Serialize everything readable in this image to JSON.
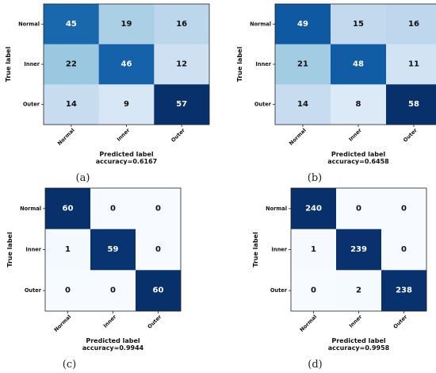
{
  "chart_data": [
    {
      "type": "heatmap",
      "panel": "(a)",
      "xlabel": "Predicted label",
      "ylabel": "True label",
      "accuracy_text": "accuracy=0.6167",
      "row_labels": [
        "Normal",
        "Inner",
        "Outer"
      ],
      "col_labels": [
        "Normal",
        "Inner",
        "Outer"
      ],
      "values": [
        [
          45,
          19,
          16
        ],
        [
          22,
          46,
          12
        ],
        [
          14,
          9,
          57
        ]
      ],
      "colormap": "Blues"
    },
    {
      "type": "heatmap",
      "panel": "(b)",
      "xlabel": "Predicted label",
      "ylabel": "True label",
      "accuracy_text": "accuracy=0.6458",
      "row_labels": [
        "Normal",
        "Inner",
        "Outer"
      ],
      "col_labels": [
        "Normal",
        "Inner",
        "Outer"
      ],
      "values": [
        [
          49,
          15,
          16
        ],
        [
          21,
          48,
          11
        ],
        [
          14,
          8,
          58
        ]
      ],
      "colormap": "Blues"
    },
    {
      "type": "heatmap",
      "panel": "(c)",
      "xlabel": "Predicted label",
      "ylabel": "True label",
      "accuracy_text": "accuracy=0.9944",
      "row_labels": [
        "Normal",
        "Inner",
        "Outer"
      ],
      "col_labels": [
        "Normal",
        "Inner",
        "Outer"
      ],
      "values": [
        [
          60,
          0,
          0
        ],
        [
          1,
          59,
          0
        ],
        [
          0,
          0,
          60
        ]
      ],
      "colormap": "Blues"
    },
    {
      "type": "heatmap",
      "panel": "(d)",
      "xlabel": "Predicted label",
      "ylabel": "True label",
      "accuracy_text": "accuracy=0.9958",
      "row_labels": [
        "Normal",
        "Inner",
        "Outer"
      ],
      "col_labels": [
        "Normal",
        "Inner",
        "Outer"
      ],
      "values": [
        [
          240,
          0,
          0
        ],
        [
          1,
          239,
          0
        ],
        [
          0,
          2,
          238
        ]
      ],
      "colormap": "Blues"
    }
  ]
}
